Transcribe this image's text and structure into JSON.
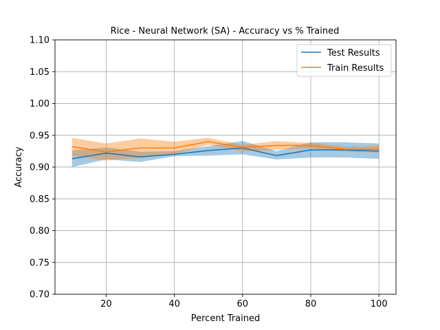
{
  "chart_data": {
    "type": "line",
    "title": "Rice - Neural Network (SA) - Accuracy vs % Trained",
    "xlabel": "Percent Trained",
    "ylabel": "Accuracy",
    "xlim": [
      5,
      105
    ],
    "ylim": [
      0.7,
      1.1
    ],
    "xticks": [
      20,
      40,
      60,
      80,
      100
    ],
    "yticks": [
      0.7,
      0.75,
      0.8,
      0.85,
      0.9,
      0.95,
      1.0,
      1.05,
      1.1
    ],
    "xtick_labels": [
      "20",
      "40",
      "60",
      "80",
      "100"
    ],
    "ytick_labels": [
      "0.70",
      "0.75",
      "0.80",
      "0.85",
      "0.90",
      "0.95",
      "1.00",
      "1.05",
      "1.10"
    ],
    "grid": true,
    "legend_position": "top-right",
    "x": [
      10,
      20,
      30,
      40,
      50,
      60,
      70,
      80,
      90,
      100
    ],
    "series": [
      {
        "name": "Test Results",
        "color": "#1f77b4",
        "values": [
          0.913,
          0.922,
          0.916,
          0.92,
          0.926,
          0.93,
          0.918,
          0.927,
          0.927,
          0.925
        ],
        "band_lower": [
          0.9,
          0.912,
          0.908,
          0.917,
          0.918,
          0.92,
          0.912,
          0.915,
          0.915,
          0.913
        ],
        "band_upper": [
          0.926,
          0.931,
          0.924,
          0.925,
          0.933,
          0.941,
          0.925,
          0.939,
          0.939,
          0.937
        ]
      },
      {
        "name": "Train Results",
        "color": "#ff7f0e",
        "values": [
          0.932,
          0.924,
          0.93,
          0.93,
          0.94,
          0.931,
          0.934,
          0.934,
          0.928,
          0.928
        ],
        "band_lower": [
          0.918,
          0.91,
          0.915,
          0.92,
          0.935,
          0.925,
          0.927,
          0.93,
          0.924,
          0.923
        ],
        "band_upper": [
          0.946,
          0.937,
          0.945,
          0.94,
          0.946,
          0.935,
          0.941,
          0.938,
          0.932,
          0.933
        ]
      }
    ]
  }
}
